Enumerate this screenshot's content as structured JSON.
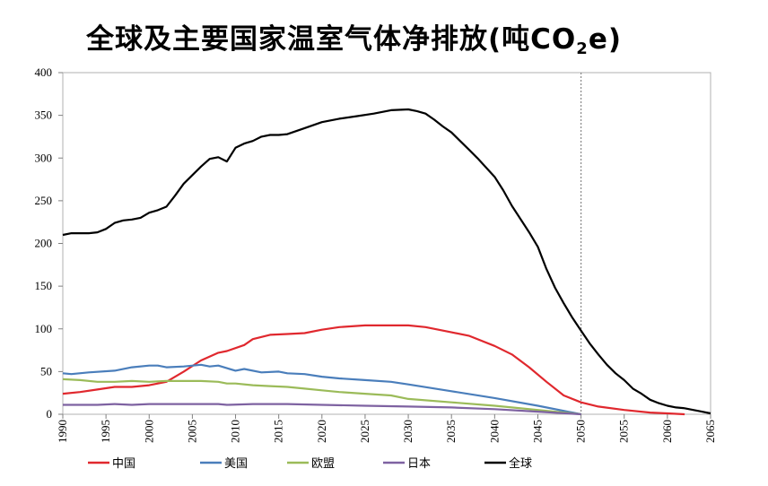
{
  "title_main": "全球及主要国家温室气体净排放(吨CO",
  "title_sub": "2",
  "title_tail": "e)",
  "chart_data": {
    "type": "line",
    "title": "全球及主要国家温室气体净排放(吨CO2e)",
    "xlabel": "",
    "ylabel": "",
    "xlim": [
      1990,
      2065
    ],
    "ylim": [
      0,
      400
    ],
    "x_ticks": [
      1990,
      1995,
      2000,
      2005,
      2010,
      2015,
      2020,
      2025,
      2030,
      2035,
      2040,
      2045,
      2050,
      2055,
      2060,
      2065
    ],
    "y_ticks": [
      0,
      50,
      100,
      150,
      200,
      250,
      300,
      350,
      400
    ],
    "reference_line": {
      "x": 2050,
      "style": "dotted"
    },
    "grid": false,
    "legend_position": "bottom",
    "series": [
      {
        "name": "中国",
        "color": "#e0282e",
        "points": [
          [
            1990,
            24
          ],
          [
            1992,
            26
          ],
          [
            1994,
            29
          ],
          [
            1996,
            32
          ],
          [
            1998,
            32
          ],
          [
            2000,
            34
          ],
          [
            2002,
            38
          ],
          [
            2004,
            50
          ],
          [
            2006,
            63
          ],
          [
            2008,
            72
          ],
          [
            2009,
            74
          ],
          [
            2011,
            81
          ],
          [
            2012,
            88
          ],
          [
            2014,
            93
          ],
          [
            2016,
            94
          ],
          [
            2018,
            95
          ],
          [
            2020,
            99
          ],
          [
            2022,
            102
          ],
          [
            2025,
            104
          ],
          [
            2028,
            104
          ],
          [
            2030,
            104
          ],
          [
            2032,
            102
          ],
          [
            2035,
            96
          ],
          [
            2037,
            92
          ],
          [
            2040,
            80
          ],
          [
            2042,
            70
          ],
          [
            2044,
            55
          ],
          [
            2046,
            38
          ],
          [
            2048,
            22
          ],
          [
            2050,
            14
          ],
          [
            2052,
            9
          ],
          [
            2055,
            5
          ],
          [
            2058,
            2
          ],
          [
            2060,
            1
          ],
          [
            2062,
            0
          ]
        ]
      },
      {
        "name": "美国",
        "color": "#4a7ebb",
        "points": [
          [
            1990,
            48
          ],
          [
            1991,
            47
          ],
          [
            1993,
            49
          ],
          [
            1996,
            51
          ],
          [
            1998,
            55
          ],
          [
            2000,
            57
          ],
          [
            2001,
            57
          ],
          [
            2002,
            55
          ],
          [
            2004,
            56
          ],
          [
            2006,
            58
          ],
          [
            2007,
            56
          ],
          [
            2008,
            57
          ],
          [
            2009,
            54
          ],
          [
            2010,
            51
          ],
          [
            2011,
            53
          ],
          [
            2013,
            49
          ],
          [
            2015,
            50
          ],
          [
            2016,
            48
          ],
          [
            2018,
            47
          ],
          [
            2020,
            44
          ],
          [
            2022,
            42
          ],
          [
            2025,
            40
          ],
          [
            2028,
            38
          ],
          [
            2030,
            35
          ],
          [
            2035,
            27
          ],
          [
            2040,
            19
          ],
          [
            2045,
            10
          ],
          [
            2049,
            2
          ],
          [
            2050,
            0
          ]
        ]
      },
      {
        "name": "欧盟",
        "color": "#9bbb59",
        "points": [
          [
            1990,
            41
          ],
          [
            1992,
            40
          ],
          [
            1994,
            38
          ],
          [
            1996,
            38
          ],
          [
            1998,
            39
          ],
          [
            2000,
            38
          ],
          [
            2002,
            39
          ],
          [
            2004,
            39
          ],
          [
            2006,
            39
          ],
          [
            2008,
            38
          ],
          [
            2009,
            36
          ],
          [
            2010,
            36
          ],
          [
            2012,
            34
          ],
          [
            2014,
            33
          ],
          [
            2016,
            32
          ],
          [
            2018,
            30
          ],
          [
            2020,
            28
          ],
          [
            2022,
            26
          ],
          [
            2025,
            24
          ],
          [
            2028,
            22
          ],
          [
            2030,
            18
          ],
          [
            2035,
            14
          ],
          [
            2040,
            10
          ],
          [
            2045,
            5
          ],
          [
            2049,
            1
          ],
          [
            2050,
            0
          ]
        ]
      },
      {
        "name": "日本",
        "color": "#7e62a1",
        "points": [
          [
            1990,
            11
          ],
          [
            1994,
            11
          ],
          [
            1996,
            12
          ],
          [
            1998,
            11
          ],
          [
            2000,
            12
          ],
          [
            2004,
            12
          ],
          [
            2007,
            12
          ],
          [
            2008,
            12
          ],
          [
            2009,
            11
          ],
          [
            2012,
            12
          ],
          [
            2014,
            12
          ],
          [
            2016,
            12
          ],
          [
            2020,
            11
          ],
          [
            2025,
            10
          ],
          [
            2030,
            9
          ],
          [
            2035,
            8
          ],
          [
            2040,
            6
          ],
          [
            2045,
            3
          ],
          [
            2050,
            0
          ]
        ]
      },
      {
        "name": "全球",
        "color": "#000000",
        "points": [
          [
            1990,
            210
          ],
          [
            1991,
            212
          ],
          [
            1993,
            212
          ],
          [
            1994,
            213
          ],
          [
            1995,
            217
          ],
          [
            1996,
            224
          ],
          [
            1997,
            227
          ],
          [
            1998,
            228
          ],
          [
            1999,
            230
          ],
          [
            2000,
            236
          ],
          [
            2001,
            239
          ],
          [
            2002,
            243
          ],
          [
            2003,
            256
          ],
          [
            2004,
            270
          ],
          [
            2005,
            280
          ],
          [
            2006,
            290
          ],
          [
            2007,
            299
          ],
          [
            2008,
            301
          ],
          [
            2009,
            296
          ],
          [
            2010,
            312
          ],
          [
            2011,
            317
          ],
          [
            2012,
            320
          ],
          [
            2013,
            325
          ],
          [
            2014,
            327
          ],
          [
            2015,
            327
          ],
          [
            2016,
            328
          ],
          [
            2018,
            335
          ],
          [
            2020,
            342
          ],
          [
            2022,
            346
          ],
          [
            2024,
            349
          ],
          [
            2026,
            352
          ],
          [
            2028,
            356
          ],
          [
            2030,
            357
          ],
          [
            2031,
            355
          ],
          [
            2032,
            352
          ],
          [
            2033,
            345
          ],
          [
            2034,
            337
          ],
          [
            2035,
            330
          ],
          [
            2036,
            320
          ],
          [
            2037,
            310
          ],
          [
            2038,
            300
          ],
          [
            2040,
            278
          ],
          [
            2041,
            262
          ],
          [
            2042,
            244
          ],
          [
            2044,
            213
          ],
          [
            2045,
            196
          ],
          [
            2046,
            170
          ],
          [
            2047,
            148
          ],
          [
            2048,
            130
          ],
          [
            2049,
            113
          ],
          [
            2050,
            98
          ],
          [
            2051,
            83
          ],
          [
            2052,
            70
          ],
          [
            2053,
            58
          ],
          [
            2054,
            48
          ],
          [
            2055,
            40
          ],
          [
            2056,
            30
          ],
          [
            2057,
            24
          ],
          [
            2058,
            17
          ],
          [
            2059,
            13
          ],
          [
            2060,
            10
          ],
          [
            2061,
            8
          ],
          [
            2062,
            7
          ],
          [
            2063,
            5
          ],
          [
            2064,
            3
          ],
          [
            2065,
            1
          ]
        ]
      }
    ]
  }
}
